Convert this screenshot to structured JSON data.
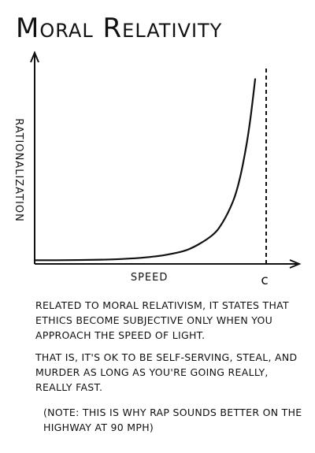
{
  "chart_data": {
    "type": "line",
    "title": "Moral Relativity",
    "xlabel": "Speed",
    "ylabel": "Rationalization",
    "x_marker_label": "c",
    "x": [
      0,
      0.1,
      0.2,
      0.3,
      0.4,
      0.5,
      0.6,
      0.7,
      0.8,
      0.85,
      0.9,
      0.93,
      0.96,
      0.98,
      1.0
    ],
    "y": [
      0.02,
      0.02,
      0.021,
      0.023,
      0.027,
      0.035,
      0.05,
      0.08,
      0.15,
      0.22,
      0.34,
      0.46,
      0.64,
      0.8,
      1.0
    ],
    "xlim": [
      0,
      1.15
    ],
    "ylim": [
      0,
      1.1
    ],
    "x_marker": 1.05,
    "grid": false,
    "legend": "none"
  },
  "caption": {
    "paragraph1": "Related to moral relativism, it states that ethics become subjective only when you approach the speed of light.",
    "paragraph2": "That is, it's ok to be self-serving, steal, and murder as long as you're going really, really fast.",
    "note": "(Note: this is why rap sounds better on the highway at 90 mph)"
  }
}
